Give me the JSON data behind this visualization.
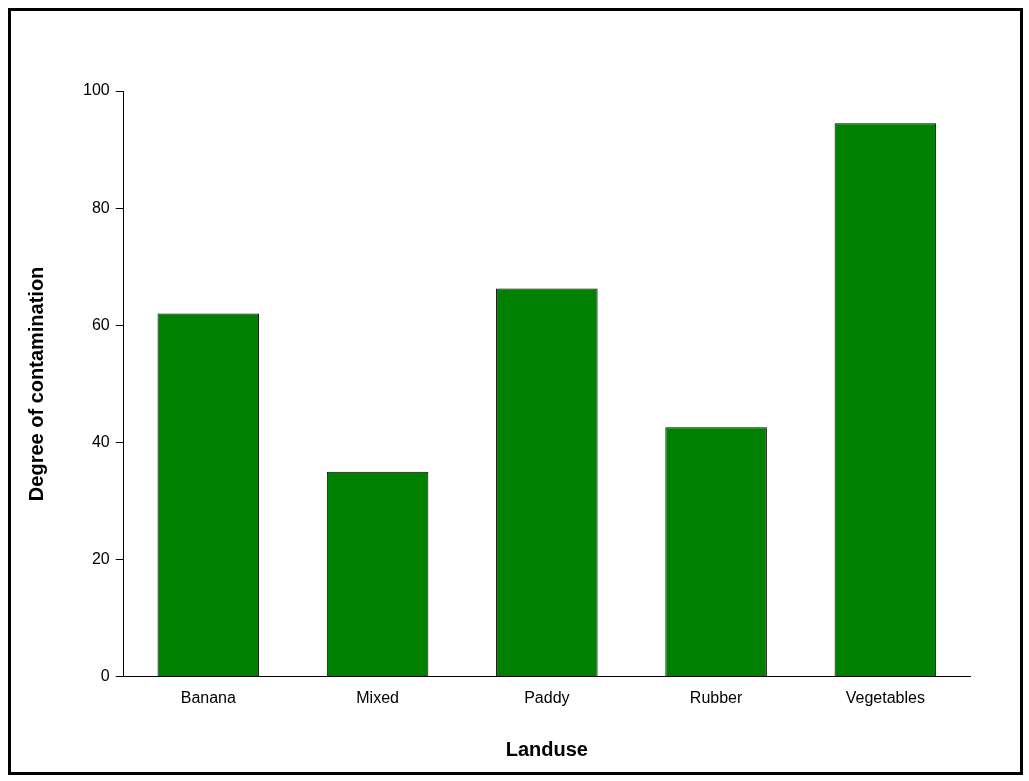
{
  "chart_data": {
    "type": "bar",
    "xlabel": "Landuse",
    "ylabel": "Degree of contamination",
    "categories": [
      "Banana",
      "Mixed",
      "Paddy",
      "Rubber",
      "Vegetables"
    ],
    "values": [
      62,
      35,
      66.3,
      42.6,
      94.5
    ],
    "color": "#008000",
    "ylim": [
      0,
      100
    ],
    "yticks": [
      0,
      20,
      40,
      60,
      80,
      100
    ],
    "grid": false,
    "legend": false
  }
}
